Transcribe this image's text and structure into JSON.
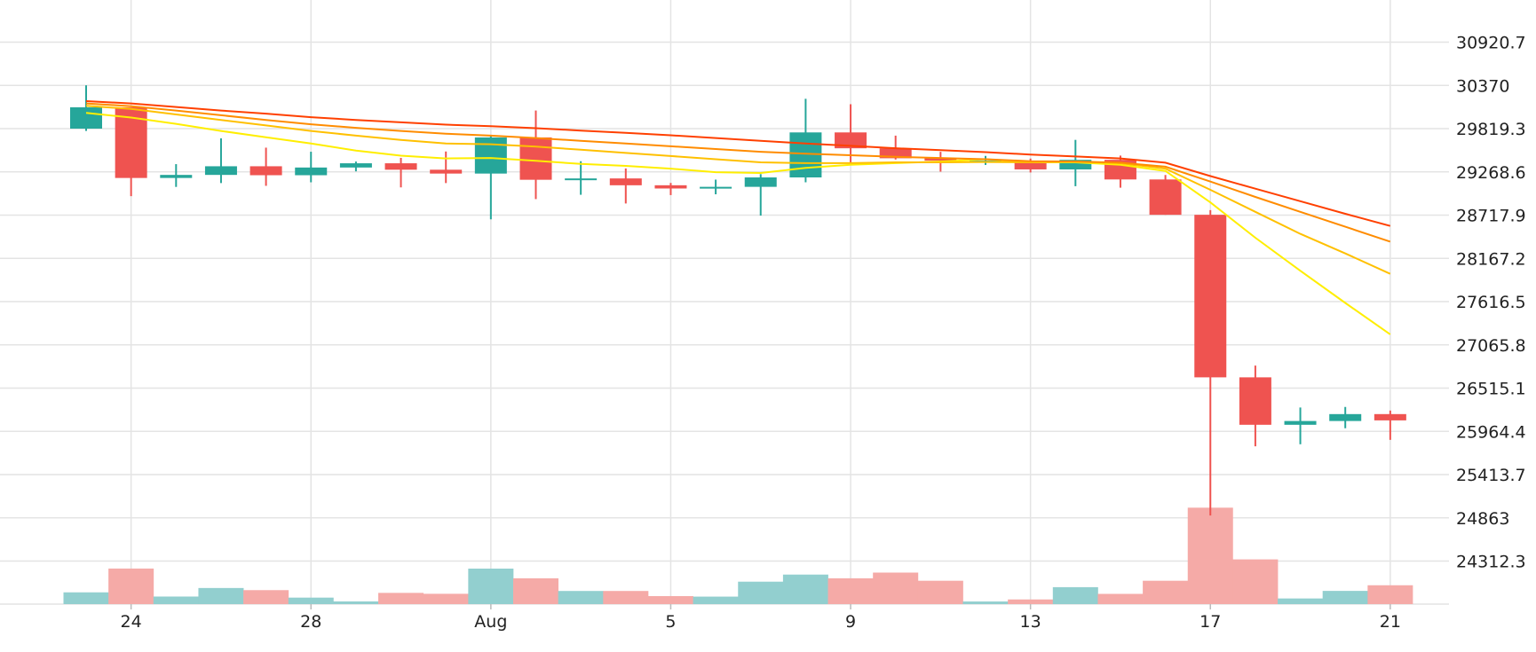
{
  "chart_data": {
    "type": "candlestick",
    "title": "",
    "xlabel": "",
    "ylabel": "",
    "ylim": [
      23761.6,
      31471.4
    ],
    "y_ticks": [
      30920.7,
      30370,
      29819.3,
      29268.6,
      28717.9,
      28167.2,
      27616.5,
      27065.8,
      26515.1,
      25964.4,
      25413.7,
      24863,
      24312.3
    ],
    "y_tick_labels": [
      "30920.7",
      "30370",
      "29819.3",
      "29268.6",
      "28717.9",
      "28167.2",
      "27616.5",
      "27065.8",
      "26515.1",
      "25964.4",
      "25413.7",
      "24863",
      "24312.3"
    ],
    "x_ticks": [
      {
        "label": "24",
        "index": 1
      },
      {
        "label": "28",
        "index": 5
      },
      {
        "label": "Aug",
        "index": 9
      },
      {
        "label": "5",
        "index": 13
      },
      {
        "label": "9",
        "index": 17
      },
      {
        "label": "13",
        "index": 21
      },
      {
        "label": "17",
        "index": 25
      },
      {
        "label": "21",
        "index": 29
      }
    ],
    "colors": {
      "up": "#26a69a",
      "down": "#ef5350",
      "volume_up": "#92cfcf",
      "volume_down": "#f5aaa7",
      "grid": "#e4e4e4"
    },
    "candles": [
      {
        "date": "Jul 23",
        "open": 29819,
        "high": 30371,
        "low": 29790,
        "close": 30091
      },
      {
        "date": "Jul 24",
        "open": 30091,
        "high": 30091,
        "low": 28960,
        "close": 29191
      },
      {
        "date": "Jul 25",
        "open": 29191,
        "high": 29367,
        "low": 29077,
        "close": 29230
      },
      {
        "date": "Jul 26",
        "open": 29230,
        "high": 29696,
        "low": 29126,
        "close": 29340
      },
      {
        "date": "Jul 27",
        "open": 29340,
        "high": 29577,
        "low": 29091,
        "close": 29226
      },
      {
        "date": "Jul 28",
        "open": 29226,
        "high": 29525,
        "low": 29136,
        "close": 29324
      },
      {
        "date": "Jul 29",
        "open": 29324,
        "high": 29400,
        "low": 29275,
        "close": 29378
      },
      {
        "date": "Jul 30",
        "open": 29378,
        "high": 29447,
        "low": 29071,
        "close": 29296
      },
      {
        "date": "Jul 31",
        "open": 29296,
        "high": 29528,
        "low": 29126,
        "close": 29247
      },
      {
        "date": "Aug 1",
        "open": 29247,
        "high": 29730,
        "low": 28664,
        "close": 29707
      },
      {
        "date": "Aug 2",
        "open": 29707,
        "high": 30050,
        "low": 28922,
        "close": 29168
      },
      {
        "date": "Aug 3",
        "open": 29168,
        "high": 29404,
        "low": 28977,
        "close": 29185
      },
      {
        "date": "Aug 4",
        "open": 29185,
        "high": 29312,
        "low": 28866,
        "close": 29098
      },
      {
        "date": "Aug 5",
        "open": 29098,
        "high": 29128,
        "low": 28973,
        "close": 29057
      },
      {
        "date": "Aug 6",
        "open": 29057,
        "high": 29170,
        "low": 28983,
        "close": 29078
      },
      {
        "date": "Aug 7",
        "open": 29078,
        "high": 29240,
        "low": 28712,
        "close": 29198
      },
      {
        "date": "Aug 8",
        "open": 29198,
        "high": 30199,
        "low": 29136,
        "close": 29771
      },
      {
        "date": "Aug 9",
        "open": 29771,
        "high": 30130,
        "low": 29377,
        "close": 29569
      },
      {
        "date": "Aug 10",
        "open": 29569,
        "high": 29730,
        "low": 29426,
        "close": 29442
      },
      {
        "date": "Aug 11",
        "open": 29442,
        "high": 29524,
        "low": 29271,
        "close": 29411
      },
      {
        "date": "Aug 12",
        "open": 29411,
        "high": 29472,
        "low": 29357,
        "close": 29411
      },
      {
        "date": "Aug 13",
        "open": 29411,
        "high": 29438,
        "low": 29261,
        "close": 29300
      },
      {
        "date": "Aug 14",
        "open": 29300,
        "high": 29676,
        "low": 29086,
        "close": 29422
      },
      {
        "date": "Aug 15",
        "open": 29422,
        "high": 29476,
        "low": 29067,
        "close": 29172
      },
      {
        "date": "Aug 16",
        "open": 29172,
        "high": 29229,
        "low": 28722,
        "close": 28722
      },
      {
        "date": "Aug 17",
        "open": 28722,
        "high": 28782,
        "low": 24892,
        "close": 26652
      },
      {
        "date": "Aug 18",
        "open": 26652,
        "high": 26802,
        "low": 25774,
        "close": 26048
      },
      {
        "date": "Aug 19",
        "open": 26048,
        "high": 26268,
        "low": 25800,
        "close": 26096
      },
      {
        "date": "Aug 20",
        "open": 26096,
        "high": 26275,
        "low": 26004,
        "close": 26184
      },
      {
        "date": "Aug 21",
        "open": 26184,
        "high": 26229,
        "low": 25856,
        "close": 26104
      }
    ],
    "volume": {
      "ylim": [
        0,
        100
      ],
      "values": [
        15.4,
        46.6,
        9.9,
        21.1,
        18.3,
        8.5,
        3.5,
        14.7,
        13.5,
        46.5,
        33.8,
        17.2,
        17.2,
        10.5,
        9.8,
        29.4,
        38.7,
        33.8,
        41.3,
        30.6,
        3.4,
        6.1,
        22.2,
        13.4,
        30.6,
        126.4,
        58.6,
        7.4,
        17.3,
        24.7
      ]
    },
    "moving_averages": [
      {
        "color": "#ffee00",
        "values": [
          30019,
          29960,
          29880,
          29790,
          29710,
          29630,
          29540,
          29475,
          29440,
          29445,
          29410,
          29370,
          29345,
          29310,
          29265,
          29255,
          29320,
          29360,
          29380,
          29400,
          29430,
          29390,
          29390,
          29360,
          29280,
          28880,
          28430,
          28010,
          27600,
          27200
        ]
      },
      {
        "color": "#ffc000",
        "values": [
          30110,
          30070,
          30000,
          29930,
          29860,
          29790,
          29730,
          29675,
          29630,
          29620,
          29590,
          29550,
          29510,
          29470,
          29430,
          29390,
          29380,
          29380,
          29390,
          29390,
          29395,
          29390,
          29400,
          29380,
          29310,
          29040,
          28760,
          28480,
          28230,
          27970
        ]
      },
      {
        "color": "#ff8c00",
        "values": [
          30140,
          30105,
          30050,
          29990,
          29930,
          29875,
          29830,
          29790,
          29755,
          29730,
          29700,
          29665,
          29630,
          29595,
          29560,
          29525,
          29500,
          29480,
          29460,
          29445,
          29430,
          29405,
          29400,
          29385,
          29335,
          29145,
          28950,
          28760,
          28570,
          28380
        ]
      },
      {
        "color": "#ff4000",
        "values": [
          30170,
          30140,
          30095,
          30050,
          30010,
          29965,
          29930,
          29900,
          29870,
          29850,
          29825,
          29795,
          29765,
          29735,
          29700,
          29665,
          29630,
          29600,
          29570,
          29545,
          29520,
          29490,
          29465,
          29440,
          29385,
          29215,
          29055,
          28895,
          28735,
          28580
        ]
      }
    ]
  }
}
